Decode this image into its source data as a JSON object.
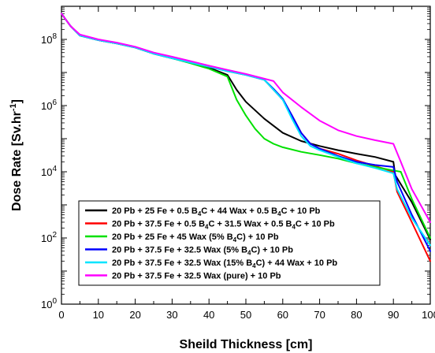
{
  "chart_data": {
    "type": "line",
    "xlabel": "Sheild Thickness [cm]",
    "ylabel_main": "Dose Rate [Sv.hr",
    "ylabel_sup": "-1",
    "ylabel_tail": "]",
    "xlim": [
      0,
      100
    ],
    "ylim": [
      1,
      1000000000
    ],
    "yscale": "log",
    "x_ticks": [
      0,
      10,
      20,
      30,
      40,
      50,
      60,
      70,
      80,
      90,
      100
    ],
    "y_ticks": [
      {
        "value": 1,
        "base": "10",
        "exp": "0"
      },
      {
        "value": 100,
        "base": "10",
        "exp": "2"
      },
      {
        "value": 10000,
        "base": "10",
        "exp": "4"
      },
      {
        "value": 1000000,
        "base": "10",
        "exp": "6"
      },
      {
        "value": 100000000,
        "base": "10",
        "exp": "8"
      }
    ],
    "legend_position": "bottom-left",
    "series": [
      {
        "name": "20 Pb + 25 Fe + 0.5 B4C + 44 Wax + 0.5 B4C + 10 Pb",
        "legend_parts": [
          [
            "20 Pb + 25 Fe + 0.5 B",
            ""
          ],
          [
            "4",
            "sub"
          ],
          [
            "C + 44 Wax + 0.5 B",
            ""
          ],
          [
            "4",
            "sub"
          ],
          [
            "C + 10 Pb",
            ""
          ]
        ],
        "color": "#000000",
        "x": [
          0,
          2.5,
          5,
          10,
          15,
          20,
          25,
          30,
          35,
          40,
          45,
          47.5,
          50,
          55,
          60,
          65,
          70,
          75,
          80,
          85,
          90,
          90.5,
          95,
          100
        ],
        "y": [
          600000000,
          250000000,
          130000000,
          95000000,
          75000000,
          57000000,
          37000000,
          27000000,
          20000000,
          14000000,
          8500000,
          3000000,
          1300000,
          400000,
          150000,
          85000,
          60000,
          45000,
          35000,
          28000,
          20000,
          8000,
          1200,
          90
        ]
      },
      {
        "name": "20 Pb + 37.5 Fe + 0.5 B4C + 31.5 Wax + 0.5 B4C + 10 Pb",
        "legend_parts": [
          [
            "20 Pb + 37.5 Fe + 0.5 B",
            ""
          ],
          [
            "4",
            "sub"
          ],
          [
            "C + 31.5 Wax + 0.5 B",
            ""
          ],
          [
            "4",
            "sub"
          ],
          [
            "C + 10 Pb",
            ""
          ]
        ],
        "color": "#ff0000",
        "x": [
          0,
          2.5,
          5,
          10,
          15,
          20,
          25,
          30,
          35,
          40,
          45,
          50,
          55,
          57.5,
          60,
          62.5,
          65,
          67.5,
          70,
          75,
          80,
          85,
          90,
          91,
          95,
          100
        ],
        "y": [
          600000000,
          250000000,
          130000000,
          95000000,
          75000000,
          57000000,
          37000000,
          27000000,
          20000000,
          15000000,
          11000000,
          8500000,
          6000000,
          3000000,
          1500000,
          500000,
          150000,
          70000,
          50000,
          35000,
          22000,
          15000,
          10000,
          2500,
          300,
          20
        ]
      },
      {
        "name": "20 Pb + 25 Fe + 45 Wax (5% B4C) + 10 Pb",
        "legend_parts": [
          [
            "20 Pb + 25 Fe + 45 Wax (5% B",
            ""
          ],
          [
            "4",
            "sub"
          ],
          [
            "C) + 10 Pb",
            ""
          ]
        ],
        "color": "#00e000",
        "x": [
          0,
          2.5,
          5,
          10,
          15,
          20,
          25,
          30,
          35,
          40,
          45,
          47.5,
          50,
          52.5,
          55,
          57.5,
          60,
          65,
          70,
          75,
          80,
          85,
          90,
          92,
          95,
          100
        ],
        "y": [
          600000000,
          250000000,
          130000000,
          95000000,
          75000000,
          57000000,
          37000000,
          27000000,
          19000000,
          13000000,
          7500000,
          1500000,
          500000,
          200000,
          100000,
          70000,
          55000,
          40000,
          32000,
          25000,
          18000,
          14000,
          11000,
          10000,
          1500,
          100
        ]
      },
      {
        "name": "20 Pb + 37.5 Fe + 32.5 Wax (5% B4C) + 10 Pb",
        "legend_parts": [
          [
            "20 Pb + 37.5 Fe + 32.5 Wax (5% B",
            ""
          ],
          [
            "4",
            "sub"
          ],
          [
            "C) + 10 Pb",
            ""
          ]
        ],
        "color": "#0000ff",
        "x": [
          0,
          2.5,
          5,
          10,
          15,
          20,
          25,
          30,
          35,
          40,
          45,
          50,
          55,
          57.5,
          60,
          62.5,
          65,
          67.5,
          70,
          75,
          80,
          85,
          90,
          91,
          95,
          100
        ],
        "y": [
          600000000,
          250000000,
          130000000,
          95000000,
          75000000,
          57000000,
          37000000,
          27000000,
          20000000,
          15000000,
          11000000,
          8500000,
          6000000,
          3200000,
          1600000,
          500000,
          150000,
          70000,
          50000,
          30000,
          20000,
          16000,
          14000,
          5000,
          500,
          40
        ]
      },
      {
        "name": "20 Pb + 37.5 Fe + 32.5 Wax (15% B4C) + 44 Wax + 10 Pb",
        "legend_parts": [
          [
            "20 Pb + 37.5 Fe + 32.5 Wax (15% B",
            ""
          ],
          [
            "4",
            "sub"
          ],
          [
            "C) + 44 Wax + 10 Pb",
            ""
          ]
        ],
        "color": "#00e5ff",
        "x": [
          0,
          2.5,
          5,
          10,
          15,
          20,
          25,
          30,
          35,
          40,
          45,
          50,
          55,
          57.5,
          60,
          62.5,
          65,
          67.5,
          70,
          75,
          80,
          85,
          90,
          91,
          95,
          100
        ],
        "y": [
          600000000,
          250000000,
          130000000,
          95000000,
          75000000,
          57000000,
          37000000,
          27000000,
          20000000,
          15000000,
          11000000,
          8500000,
          6000000,
          3000000,
          1500000,
          400000,
          120000,
          60000,
          45000,
          28000,
          18000,
          13000,
          9000,
          3000,
          400,
          60
        ]
      },
      {
        "name": "20 Pb + 37.5 Fe + 32.5 Wax (pure) + 10 Pb",
        "legend_parts": [
          [
            "20 Pb + 37.5 Fe + 32.5 Wax (pure) + 10 Pb",
            ""
          ]
        ],
        "color": "#ff00ff",
        "x": [
          0,
          2.5,
          5,
          10,
          15,
          20,
          25,
          30,
          35,
          40,
          45,
          50,
          55,
          57.5,
          60,
          65,
          70,
          75,
          80,
          85,
          90,
          92,
          95,
          100
        ],
        "y": [
          600000000,
          250000000,
          140000000,
          100000000,
          80000000,
          60000000,
          40000000,
          30000000,
          22000000,
          16000000,
          12000000,
          9000000,
          6500000,
          5500000,
          2500000,
          900000,
          350000,
          180000,
          120000,
          90000,
          70000,
          20000,
          3000,
          300
        ]
      }
    ]
  }
}
